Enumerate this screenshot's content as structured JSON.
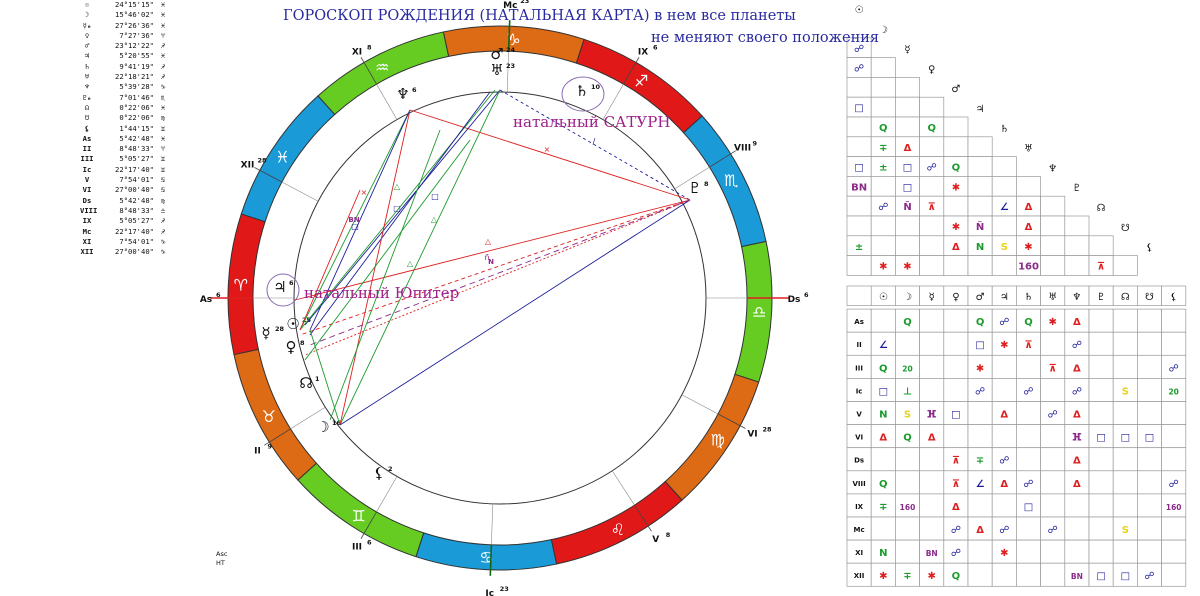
{
  "header": {
    "title_line1": "ГОРОСКОП РОЖДЕНИЯ (НАТАЛЬНАЯ КАРТА) в нем все планеты",
    "title_line2": "не меняют своего положения"
  },
  "annotations": {
    "saturn": "натальный САТУРН",
    "jupiter": "натальный Юпитер"
  },
  "footer": {
    "line1": "Asc",
    "line2": "HT"
  },
  "planet_table": [
    {
      "glyph": "☉",
      "pos": "24°15'15\"",
      "sign": "♓"
    },
    {
      "glyph": "☽",
      "pos": "15°46'02\"",
      "sign": "♓"
    },
    {
      "glyph": "☿ₑ",
      "pos": "27°26'36\"",
      "sign": "♓"
    },
    {
      "glyph": "♀",
      "pos": "7°27'36\"",
      "sign": "♈"
    },
    {
      "glyph": "♂",
      "pos": "23°12'22\"",
      "sign": "♐"
    },
    {
      "glyph": "♃",
      "pos": "5°20'55\"",
      "sign": "♓"
    },
    {
      "glyph": "♄",
      "pos": "9°41'19\"",
      "sign": "♐"
    },
    {
      "glyph": "♅",
      "pos": "22°18'21\"",
      "sign": "♐"
    },
    {
      "glyph": "♆",
      "pos": "5°39'28\"",
      "sign": "♑"
    },
    {
      "glyph": "♇ₑ",
      "pos": "7°01'46\"",
      "sign": "♏"
    },
    {
      "glyph": "☊",
      "pos": "0°22'06\"",
      "sign": "♓"
    },
    {
      "glyph": "☋",
      "pos": "0°22'06\"",
      "sign": "♍"
    },
    {
      "glyph": "⚸",
      "pos": "1°44'15\"",
      "sign": "♊"
    },
    {
      "glyph": "As",
      "pos": "5°42'48\"",
      "sign": "♓"
    },
    {
      "glyph": "II",
      "pos": "8°48'33\"",
      "sign": "♈"
    },
    {
      "glyph": "III",
      "pos": "5°05'27\"",
      "sign": "♊"
    },
    {
      "glyph": "Ic",
      "pos": "22°17'40\"",
      "sign": "♊"
    },
    {
      "glyph": "V",
      "pos": "7°54'01\"",
      "sign": "♋"
    },
    {
      "glyph": "VI",
      "pos": "27°00'40\"",
      "sign": "♋"
    },
    {
      "glyph": "Ds",
      "pos": "5°42'48\"",
      "sign": "♍"
    },
    {
      "glyph": "VIII",
      "pos": "8°48'33\"",
      "sign": "♎"
    },
    {
      "glyph": "IX",
      "pos": "5°05'27\"",
      "sign": "♐"
    },
    {
      "glyph": "Mc",
      "pos": "22°17'40\"",
      "sign": "♐"
    },
    {
      "glyph": "XI",
      "pos": "7°54'01\"",
      "sign": "♑"
    },
    {
      "glyph": "XII",
      "pos": "27°00'40\"",
      "sign": "♑"
    }
  ],
  "zodiac_ring": [
    {
      "glyph": "♐",
      "color": "#e01818"
    },
    {
      "glyph": "♏",
      "color": "#1a9ad6"
    },
    {
      "glyph": "♎",
      "color": "#66cc22"
    },
    {
      "glyph": "♍",
      "color": "#dd6a14"
    },
    {
      "glyph": "♌",
      "color": "#e01818"
    },
    {
      "glyph": "♋",
      "color": "#1a9ad6"
    },
    {
      "glyph": "♊",
      "color": "#66cc22"
    },
    {
      "glyph": "♉",
      "color": "#dd6a14"
    },
    {
      "glyph": "♈",
      "color": "#e01818"
    },
    {
      "glyph": "♓",
      "color": "#1a9ad6"
    },
    {
      "glyph": "♒",
      "color": "#66cc22"
    },
    {
      "glyph": "♑",
      "color": "#dd6a14"
    }
  ],
  "house_labels": [
    "As",
    "Ds",
    "Mc",
    "Ic",
    "II",
    "III",
    "V",
    "VI",
    "VIII",
    "IX",
    "XI",
    "XII"
  ],
  "house_degrees": [
    "6",
    "6",
    "23",
    "23",
    "9",
    "6",
    "8",
    "28",
    "9",
    "6",
    "8",
    "28"
  ],
  "chart_planets": [
    {
      "glyph": "♂",
      "deg": "24"
    },
    {
      "glyph": "♅",
      "deg": "23"
    },
    {
      "glyph": "♄",
      "deg": "10"
    },
    {
      "glyph": "♆",
      "deg": "6"
    },
    {
      "glyph": "♇",
      "deg": "8"
    },
    {
      "glyph": "♃",
      "deg": "6"
    },
    {
      "glyph": "☉",
      "deg": "25"
    },
    {
      "glyph": "☿",
      "deg": "28"
    },
    {
      "glyph": "♀",
      "deg": "8"
    },
    {
      "glyph": "☊",
      "deg": "1"
    },
    {
      "glyph": "☽",
      "deg": "16"
    },
    {
      "glyph": "⚸",
      "deg": "2"
    }
  ],
  "aspect_symbols": [
    "Q",
    "N",
    "BN",
    "ĸ",
    "Ñ"
  ],
  "grid_headers": {
    "cols": [
      "☉",
      "☽",
      "☿",
      "♀",
      "♂",
      "♃",
      "♄",
      "♅",
      "♆",
      "♇",
      "☊",
      "☋",
      "⚸"
    ],
    "rows": [
      "As",
      "II",
      "III",
      "Ic",
      "V",
      "VI",
      "Ds",
      "VIII",
      "IX",
      "Mc",
      "XI",
      "XII"
    ]
  },
  "triangle_matrix": [
    [],
    [
      "☍"
    ],
    [
      "☍",
      ""
    ],
    [
      "",
      "",
      ""
    ],
    [
      "□",
      "",
      "",
      ""
    ],
    [
      "",
      "Q",
      "",
      "Q",
      ""
    ],
    [
      "",
      "∓",
      "Δ",
      "",
      "",
      ""
    ],
    [
      "□",
      "±",
      "□",
      "☍",
      "Q",
      "",
      ""
    ],
    [
      "BN",
      "",
      "□",
      "",
      "✱",
      "",
      "",
      ""
    ],
    [
      "",
      "☍",
      "Ñ",
      "⊼",
      "",
      "",
      "∠",
      "Δ",
      ""
    ],
    [
      "",
      "",
      "",
      "",
      "✱",
      "Ñ",
      "",
      "Δ",
      "",
      ""
    ],
    [
      "±",
      "",
      "",
      "",
      "Δ",
      "N",
      "S",
      "✱",
      "",
      "",
      ""
    ],
    [
      "",
      "✱",
      "✱",
      "",
      "",
      "",
      "",
      "160",
      "",
      "",
      "⊼",
      ""
    ]
  ],
  "row_matrix": [
    [
      "",
      "Q",
      "",
      "",
      "Q",
      "☍",
      "Q",
      "✱",
      "Δ",
      "",
      "",
      "",
      ""
    ],
    [
      "∠",
      "",
      "",
      "",
      "□",
      "✱",
      "⊼",
      "",
      "☍",
      "",
      "",
      "",
      ""
    ],
    [
      "Q",
      "20",
      "",
      "",
      "✱",
      "",
      "",
      "⊼",
      "Δ",
      "",
      "",
      "",
      "☍"
    ],
    [
      "□",
      "⊥",
      "",
      "",
      "☍",
      "",
      "☍",
      "",
      "☍",
      "",
      "S",
      "",
      "20"
    ],
    [
      "N",
      "S",
      "ⴼ",
      "□",
      "",
      "Δ",
      "",
      "☍",
      "Δ",
      "",
      "",
      "",
      ""
    ],
    [
      "Δ",
      "Q",
      "Δ",
      "",
      "",
      "",
      "",
      "",
      "ⴼ",
      "□",
      "□",
      "□",
      ""
    ],
    [
      "",
      "",
      "",
      "⊼",
      "∓",
      "☍",
      "",
      "",
      "Δ",
      "",
      "",
      "",
      ""
    ],
    [
      "Q",
      "",
      "",
      "⊼",
      "∠",
      "Δ",
      "☍",
      "",
      "Δ",
      "",
      "",
      "",
      "☍"
    ],
    [
      "∓",
      "160",
      "",
      "Δ",
      "",
      "",
      "□",
      "",
      "",
      "",
      "",
      "",
      "160"
    ],
    [
      "",
      "",
      "",
      "☍",
      "Δ",
      "☍",
      "",
      "☍",
      "",
      "",
      "S",
      "",
      ""
    ],
    [
      "N",
      "",
      "BN",
      "☍",
      "",
      "✱",
      "",
      "",
      "",
      "",
      "",
      "",
      ""
    ],
    [
      "✱",
      "∓",
      "✱",
      "Q",
      "",
      "",
      "",
      "",
      "BN",
      "□",
      "□",
      "☍",
      ""
    ]
  ],
  "colors": {
    "aspect_red": "#dd1f1f",
    "aspect_green": "#1c9b2c",
    "aspect_blue": "#1c1c9b",
    "aspect_purple": "#8a2a8a",
    "aspect_yellow": "#e8d21a",
    "title": "#2a2aa0",
    "annotation": "#a0208a"
  }
}
